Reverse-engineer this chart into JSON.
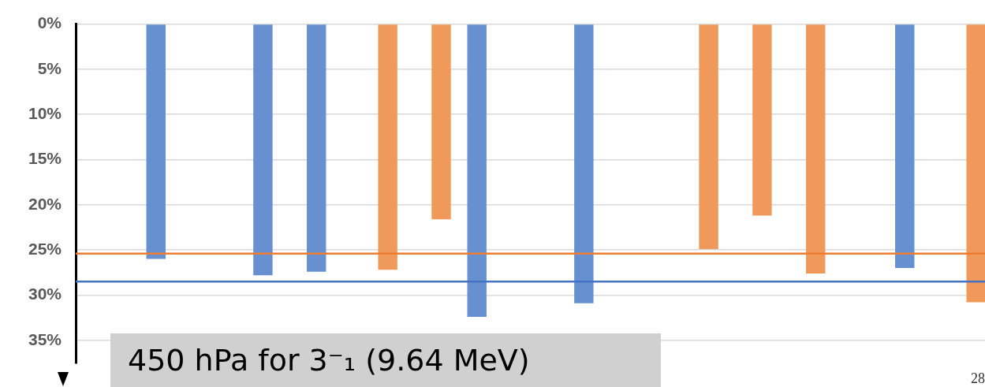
{
  "chart_data": {
    "type": "bar",
    "categories": [
      null,
      null,
      null,
      null,
      null,
      null,
      null,
      null,
      null,
      null,
      null,
      null,
      null,
      null,
      null,
      null,
      null,
      null,
      null,
      null,
      null,
      null,
      null,
      null,
      null,
      null,
      null,
      null,
      null,
      null,
      null,
      null,
      null,
      null,
      null,
      null,
      null,
      null,
      null,
      null,
      null,
      null,
      null,
      null,
      null,
      null,
      null,
      null,
      null,
      null,
      null
    ],
    "values": [
      null,
      null,
      null,
      null,
      26.0,
      null,
      null,
      null,
      null,
      null,
      27.8,
      null,
      null,
      27.4,
      null,
      null,
      null,
      27.2,
      null,
      null,
      21.6,
      null,
      32.4,
      null,
      null,
      null,
      null,
      null,
      30.9,
      null,
      null,
      null,
      null,
      null,
      null,
      24.9,
      null,
      null,
      21.2,
      null,
      null,
      27.6,
      null,
      null,
      null,
      null,
      27.0,
      null,
      null,
      null,
      30.8
    ],
    "colors": [
      null,
      null,
      null,
      null,
      "#6690d0",
      null,
      null,
      null,
      null,
      null,
      "#6690d0",
      null,
      null,
      "#6690d0",
      null,
      null,
      null,
      "#ef9a5a",
      null,
      null,
      "#ef9a5a",
      null,
      "#6690d0",
      null,
      null,
      null,
      null,
      null,
      "#6690d0",
      null,
      null,
      null,
      null,
      null,
      null,
      "#ef9a5a",
      null,
      null,
      "#ef9a5a",
      null,
      null,
      "#ef9a5a",
      null,
      null,
      null,
      null,
      "#6690d0",
      null,
      null,
      null,
      "#ef9a5a"
    ],
    "ylim": [
      37.5,
      0
    ],
    "yticks": [
      {
        "value": 0,
        "label": "0%"
      },
      {
        "value": 5,
        "label": "5%"
      },
      {
        "value": 10,
        "label": "10%"
      },
      {
        "value": 15,
        "label": "15%"
      },
      {
        "value": 20,
        "label": "20%"
      },
      {
        "value": 25,
        "label": "25%"
      },
      {
        "value": 30,
        "label": "30%"
      },
      {
        "value": 35,
        "label": "35%"
      }
    ],
    "ref_lines": [
      {
        "axis": "y",
        "value": 25.4,
        "color": "#ed7d31"
      },
      {
        "axis": "y",
        "value": 28.5,
        "color": "#4472c4"
      }
    ],
    "annotations": [
      "450 hPa for 3⁻₁ (9.64 MeV)",
      "28"
    ],
    "grid": "y",
    "legend": false,
    "tick_labels": "y"
  }
}
